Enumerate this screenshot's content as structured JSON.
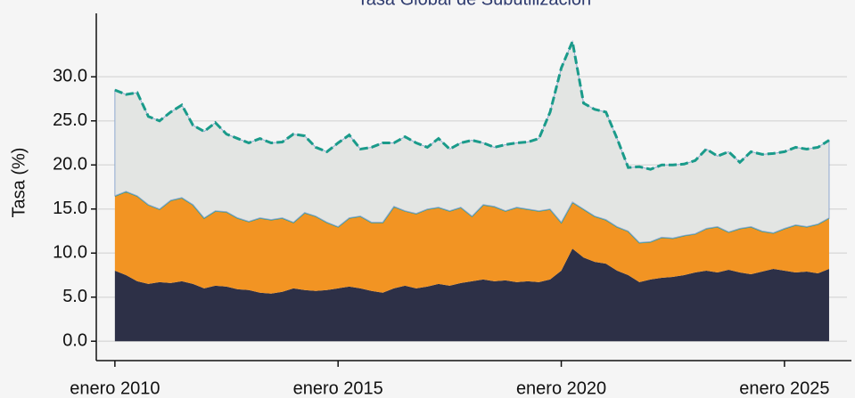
{
  "chart_data": {
    "type": "stacked_area",
    "title": "Tasa Global de Subutilización",
    "y_label": "Tasa (%)",
    "x": [
      "2010-01",
      "2010-04",
      "2010-07",
      "2010-10",
      "2011-01",
      "2011-04",
      "2011-07",
      "2011-10",
      "2012-01",
      "2012-04",
      "2012-07",
      "2012-10",
      "2013-01",
      "2013-04",
      "2013-07",
      "2013-10",
      "2014-01",
      "2014-04",
      "2014-07",
      "2014-10",
      "2015-01",
      "2015-04",
      "2015-07",
      "2015-10",
      "2016-01",
      "2016-04",
      "2016-07",
      "2016-10",
      "2017-01",
      "2017-04",
      "2017-07",
      "2017-10",
      "2018-01",
      "2018-04",
      "2018-07",
      "2018-10",
      "2019-01",
      "2019-04",
      "2019-07",
      "2019-10",
      "2020-01",
      "2020-04",
      "2020-07",
      "2020-10",
      "2021-01",
      "2021-04",
      "2021-07",
      "2021-10",
      "2022-01",
      "2022-04",
      "2022-07",
      "2022-10",
      "2023-01",
      "2023-04",
      "2023-07",
      "2023-10",
      "2024-01",
      "2024-04",
      "2024-07",
      "2024-10",
      "2025-01",
      "2025-04",
      "2025-07",
      "2025-10",
      "2026-01"
    ],
    "series": [
      {
        "color": "#2d3047",
        "values": [
          8,
          7.5,
          6.8,
          6.5,
          6.7,
          6.6,
          6.8,
          6.5,
          6.0,
          6.3,
          6.2,
          5.9,
          5.8,
          5.5,
          5.4,
          5.6,
          6.0,
          5.8,
          5.7,
          5.8,
          6.0,
          6.2,
          6.0,
          5.7,
          5.5,
          6.0,
          6.3,
          6.0,
          6.2,
          6.5,
          6.3,
          6.6,
          6.8,
          7.0,
          6.8,
          6.9,
          6.7,
          6.8,
          6.7,
          7.0,
          8.0,
          10.5,
          9.5,
          9.0,
          8.8,
          8.0,
          7.5,
          6.7,
          7.0,
          7.2,
          7.3,
          7.5,
          7.8,
          8.0,
          7.8,
          8.1,
          7.8,
          7.6,
          7.9,
          8.2,
          8.0,
          7.8,
          7.9,
          7.7,
          8.2
        ]
      },
      {
        "color": "#f29423",
        "line_color": "#1a9b8a",
        "values": [
          8.5,
          9.5,
          9.7,
          9.0,
          8.3,
          9.4,
          9.5,
          9.0,
          8.0,
          8.5,
          8.5,
          8.1,
          7.8,
          8.5,
          8.4,
          8.4,
          7.5,
          8.8,
          8.5,
          7.7,
          7.0,
          7.8,
          8.2,
          7.8,
          8.0,
          9.3,
          8.5,
          8.5,
          8.8,
          8.7,
          8.5,
          8.6,
          7.4,
          8.5,
          8.5,
          7.9,
          8.5,
          8.2,
          8.1,
          8.0,
          5.5,
          5.3,
          5.5,
          5.2,
          5.0,
          5.0,
          5.0,
          4.5,
          4.3,
          4.6,
          4.4,
          4.5,
          4.4,
          4.8,
          5.2,
          4.3,
          5.0,
          5.4,
          4.6,
          4.1,
          4.8,
          5.4,
          5.1,
          5.6,
          5.8
        ]
      },
      {
        "color": "#e3e5e3",
        "line_color": "#1a9b8a",
        "dashed": true,
        "values": [
          12,
          11,
          11.7,
          10,
          10,
          10,
          10.5,
          9,
          9.8,
          10,
          8.8,
          9,
          8.9,
          9,
          8.7,
          8.6,
          10,
          8.7,
          7.8,
          8,
          9.5,
          9.4,
          7.6,
          8.5,
          9,
          7.2,
          8.4,
          8,
          7,
          7.8,
          7,
          7.3,
          8.6,
          7,
          6.7,
          7.5,
          7.3,
          7.6,
          8.2,
          11,
          17.5,
          18.2,
          12,
          12.1,
          12.2,
          10,
          7.2,
          8.6,
          8.2,
          8.2,
          8.3,
          8.1,
          8.3,
          9,
          8,
          9.1,
          7.5,
          8.5,
          8.7,
          9,
          8.7,
          8.8,
          8.8,
          8.7,
          8.8
        ]
      }
    ],
    "xlim": [
      "2009-08",
      "2026-07"
    ],
    "xticks": [
      {
        "value": "2010-01",
        "label": "enero 2010"
      },
      {
        "value": "2015-01",
        "label": "enero 2015"
      },
      {
        "value": "2020-01",
        "label": "enero 2020"
      },
      {
        "value": "2025-01",
        "label": "enero 2025"
      }
    ],
    "ylim": [
      -2.2,
      37.2
    ],
    "yticks": [
      {
        "value": 0,
        "label": "0.0"
      },
      {
        "value": 5,
        "label": "5.0"
      },
      {
        "value": 10,
        "label": "10.0"
      },
      {
        "value": 15,
        "label": "15.0"
      },
      {
        "value": 20,
        "label": "20.0"
      },
      {
        "value": 25,
        "label": "25.0"
      },
      {
        "value": 30,
        "label": "30.0"
      }
    ],
    "grid": true
  }
}
